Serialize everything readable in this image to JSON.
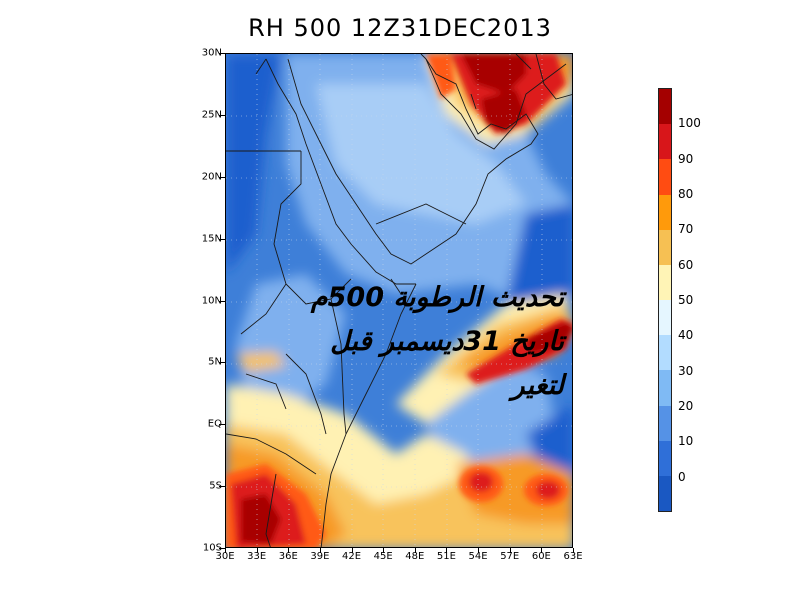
{
  "title": "RH 500 12Z31DEC2013",
  "arabic_caption": {
    "line1": "تحديث الرطوبة 500م",
    "line2": "تاريخ 31ديسمبر قبل",
    "line3": "لتغير"
  },
  "lat_labels": [
    "30N",
    "25N",
    "20N",
    "15N",
    "10N",
    "5N",
    "EQ",
    "5S",
    "10S"
  ],
  "lon_labels": [
    "30E",
    "33E",
    "36E",
    "39E",
    "42E",
    "45E",
    "48E",
    "51E",
    "54E",
    "57E",
    "60E",
    "63E"
  ],
  "colorbar": {
    "labels": [
      "100",
      "90",
      "80",
      "70",
      "60",
      "50",
      "40",
      "30",
      "20",
      "10",
      "0"
    ],
    "colors": [
      "#a40000",
      "#d8161a",
      "#ff4c12",
      "#ff9a0b",
      "#f6c053",
      "#fff4b6",
      "#e5f6ff",
      "#b2dcff",
      "#7fbaf4",
      "#5592e6",
      "#2f6fd8",
      "#1a58c2"
    ]
  },
  "field_colors": {
    "background": "#3e7fd8",
    "dark_blue": "#1f5fce",
    "light_blue": "#7fb0ee",
    "pale_blue": "#a8cdf6",
    "cream": "#fff1b3",
    "light_orange": "#f8c35c",
    "orange": "#f79a28",
    "red_orange": "#ff5a18",
    "red": "#dd1a1a",
    "dark_red": "#a80000"
  }
}
